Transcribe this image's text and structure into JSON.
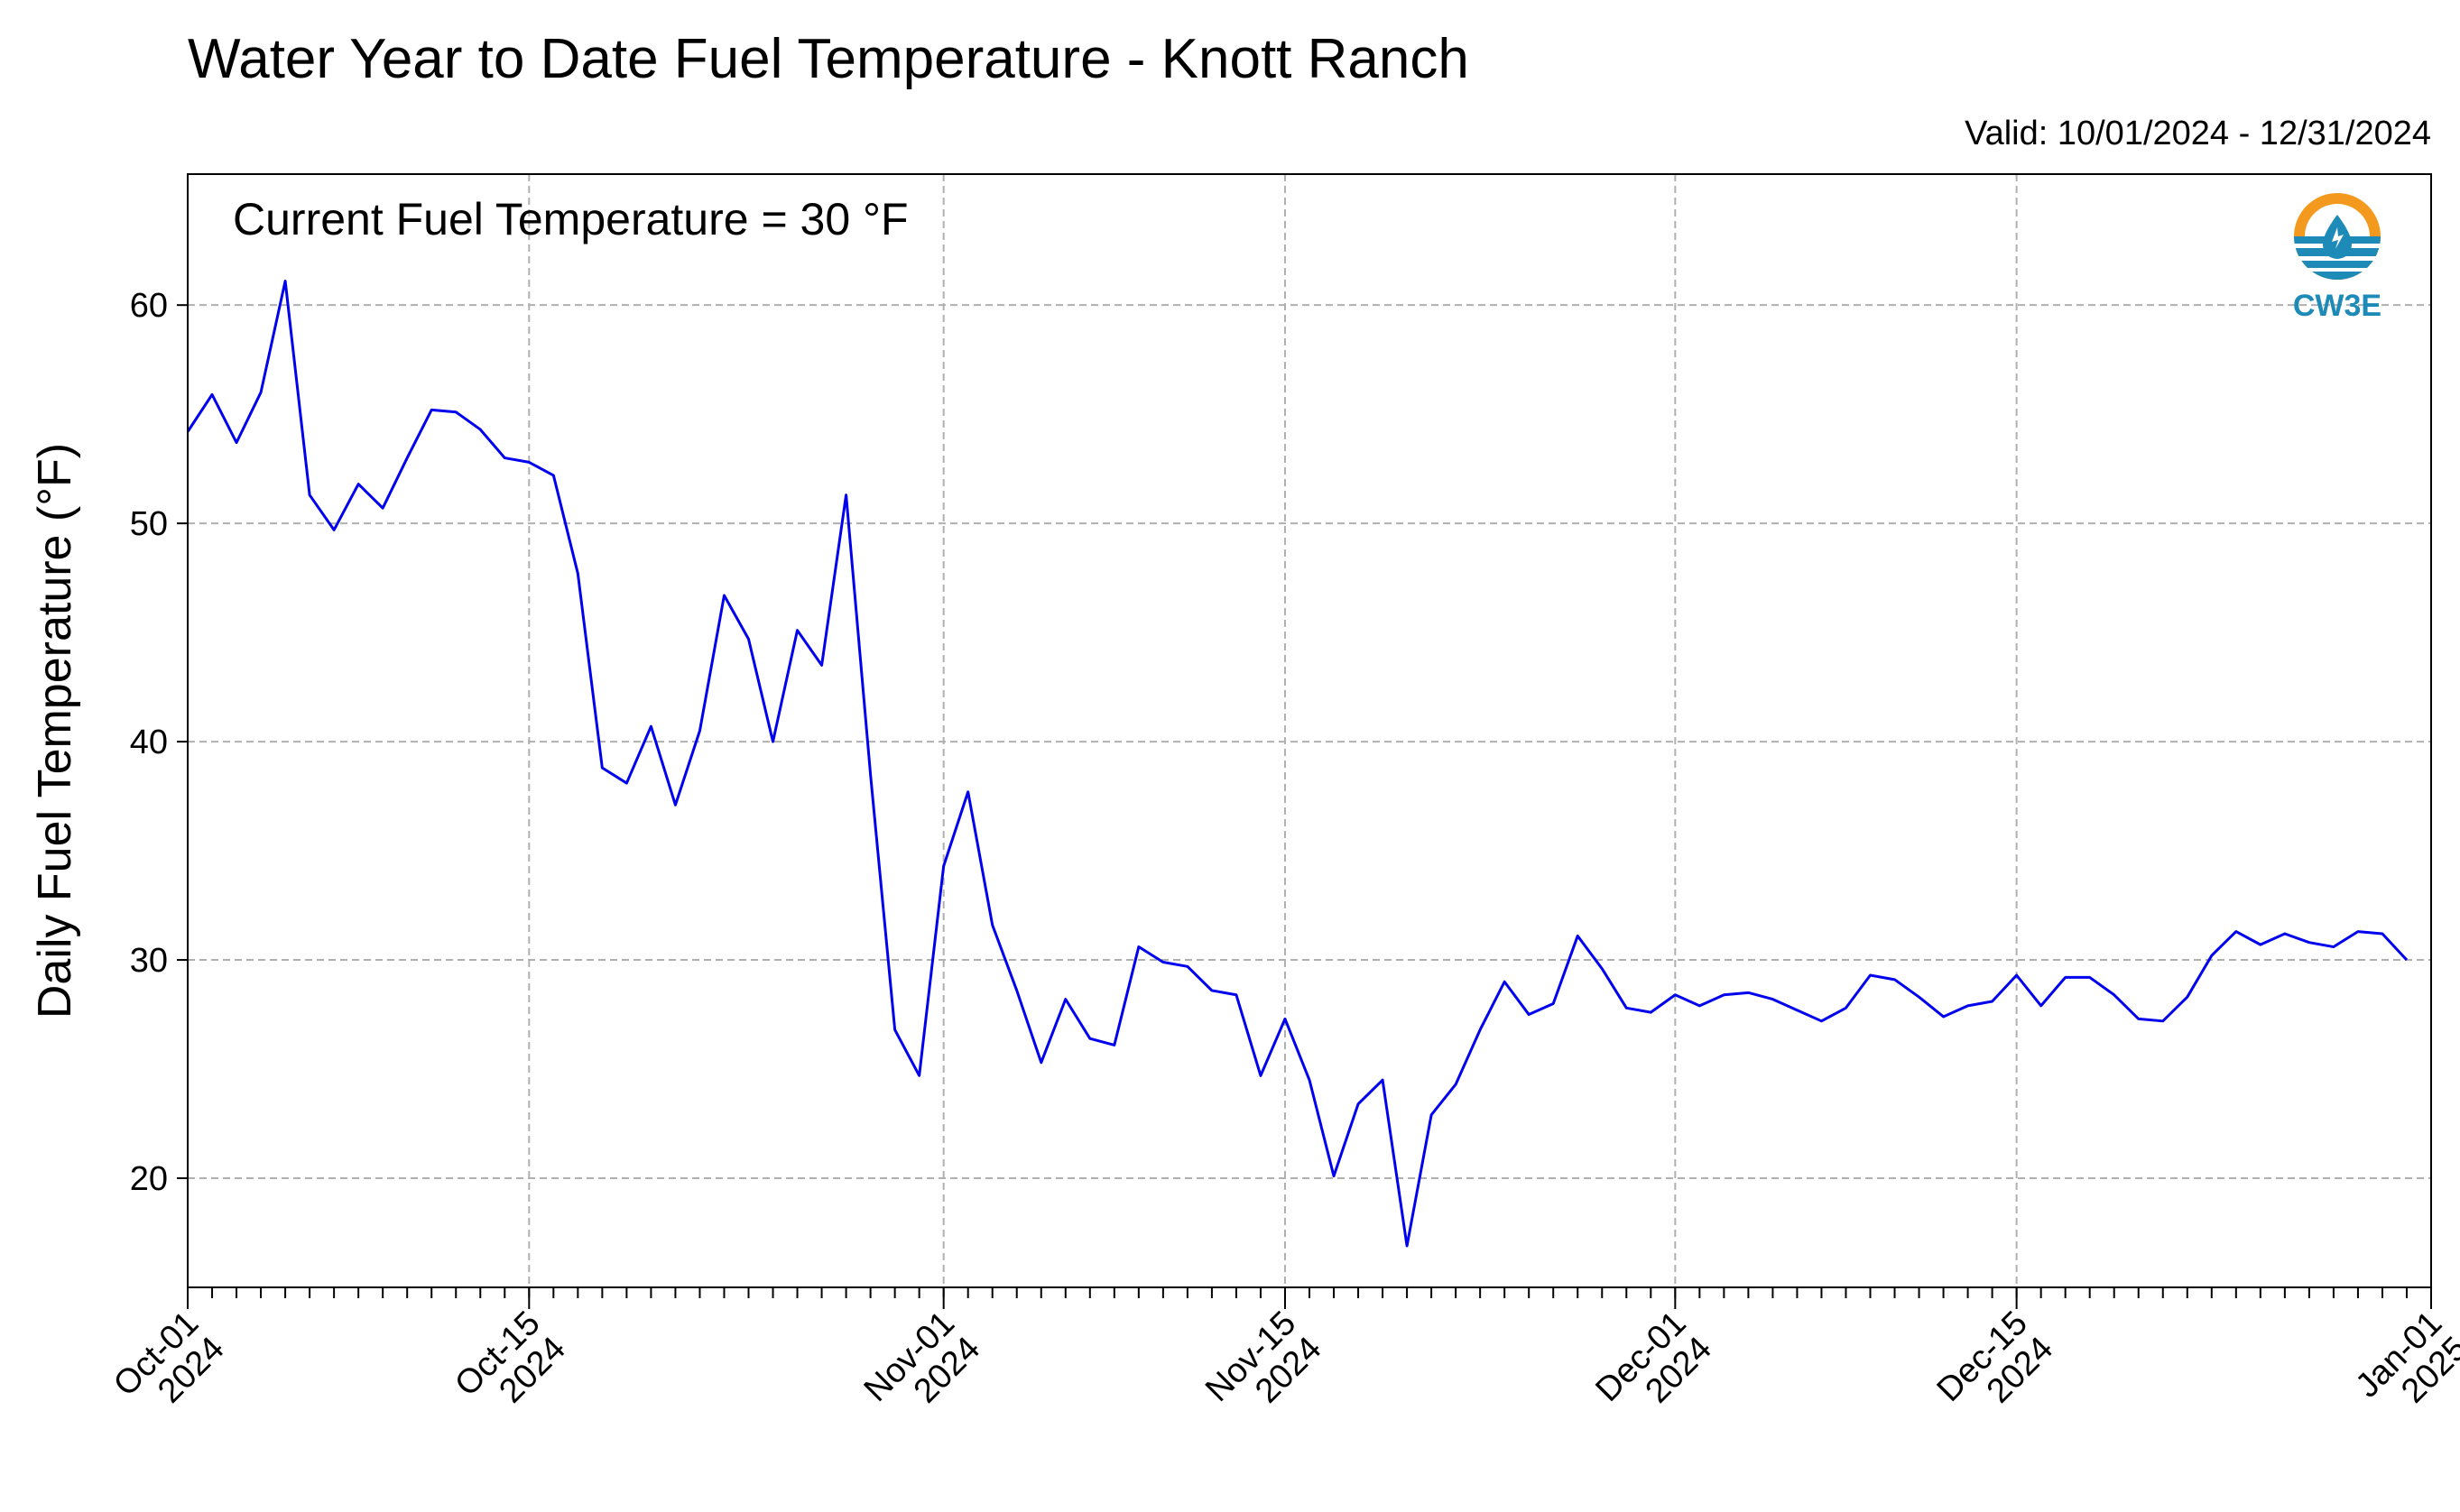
{
  "title": "Water Year to Date Fuel Temperature - Knott Ranch",
  "valid": "Valid: 10/01/2024 - 12/31/2024",
  "annotation": "Current Fuel Temperature = 30 °F",
  "logo": {
    "text": "CW3E",
    "icon": "cw3e-logo-icon",
    "orange": "#F39A1E",
    "blue": "#1E8AB8"
  },
  "chart_data": {
    "type": "line",
    "title": "Water Year to Date Fuel Temperature - Knott Ranch",
    "ylabel": "Daily Fuel Temperature (°F)",
    "xlabel": "",
    "ylim": [
      15,
      66
    ],
    "xlim": [
      "2024-10-01",
      "2025-01-01"
    ],
    "grid": true,
    "yticks": [
      20,
      30,
      40,
      50,
      60
    ],
    "xticks": [
      {
        "date": "2024-10-01",
        "label": [
          "Oct-01",
          "2024"
        ]
      },
      {
        "date": "2024-10-15",
        "label": [
          "Oct-15",
          "2024"
        ]
      },
      {
        "date": "2024-11-01",
        "label": [
          "Nov-01",
          "2024"
        ]
      },
      {
        "date": "2024-11-15",
        "label": [
          "Nov-15",
          "2024"
        ]
      },
      {
        "date": "2024-12-01",
        "label": [
          "Dec-01",
          "2024"
        ]
      },
      {
        "date": "2024-12-15",
        "label": [
          "Dec-15",
          "2024"
        ]
      },
      {
        "date": "2025-01-01",
        "label": [
          "Jan-01",
          "2025"
        ]
      }
    ],
    "series": [
      {
        "color": "#0000ee",
        "start_date": "2024-10-01",
        "values": [
          54.2,
          55.9,
          53.7,
          56.0,
          61.1,
          51.3,
          49.7,
          51.8,
          50.7,
          53.0,
          55.2,
          55.1,
          54.3,
          53.0,
          52.8,
          52.2,
          47.7,
          38.8,
          38.1,
          40.7,
          37.1,
          40.5,
          46.7,
          44.7,
          40.0,
          45.1,
          43.5,
          51.3,
          38.5,
          26.8,
          24.7,
          34.3,
          37.7,
          31.6,
          28.6,
          25.3,
          28.2,
          26.4,
          26.1,
          30.6,
          29.9,
          29.7,
          28.6,
          28.4,
          24.7,
          27.3,
          24.5,
          20.1,
          23.4,
          24.5,
          16.9,
          22.9,
          24.3,
          26.8,
          29.0,
          27.5,
          28.0,
          31.1,
          29.6,
          27.8,
          27.6,
          28.4,
          27.9,
          28.4,
          28.5,
          28.2,
          27.7,
          27.2,
          27.8,
          29.3,
          29.1,
          28.3,
          27.4,
          27.9,
          28.1,
          29.3,
          27.9,
          29.2,
          29.2,
          28.4,
          27.3,
          27.2,
          28.3,
          30.2,
          31.3,
          30.7,
          31.2,
          30.8,
          30.6,
          31.3,
          31.2,
          30.0
        ]
      }
    ]
  }
}
